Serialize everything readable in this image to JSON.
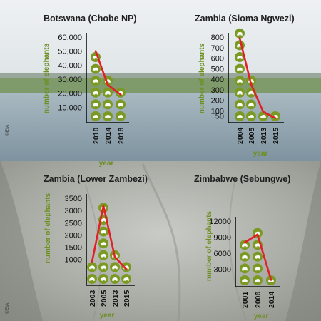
{
  "colors": {
    "marker_fill": "#7b9a24",
    "trend_line": "#e21f26",
    "axis_label": "#6e8f22",
    "axis": "#111111"
  },
  "icon": "elephant-icon",
  "chart_data": [
    {
      "type": "line",
      "title": "Botswana (Chobe NP)",
      "xlabel": "year",
      "ylabel": "number of elephants",
      "categories": [
        "2010",
        "2014",
        "2018"
      ],
      "values": [
        50000,
        26000,
        19000
      ],
      "yticks": [
        "10,000",
        "20,000",
        "30,000",
        "40,000",
        "50,000",
        "60,000"
      ],
      "ylim": [
        0,
        60000
      ],
      "credit": "©EIA"
    },
    {
      "type": "line",
      "title": "Zambia (Sioma Ngwezi)",
      "xlabel": "year",
      "ylabel": "number of elephants",
      "categories": [
        "2004",
        "2005",
        "2013",
        "2015"
      ],
      "values": [
        790,
        350,
        90,
        30
      ],
      "yticks": [
        "50",
        "100",
        "200",
        "300",
        "400",
        "500",
        "600",
        "700",
        "800"
      ],
      "ylim": [
        0,
        800
      ]
    },
    {
      "type": "line",
      "title": "Zambia (Lower Zambezi)",
      "xlabel": "year",
      "ylabel": "number of elephants",
      "categories": [
        "2003",
        "2005",
        "2013",
        "2015"
      ],
      "values": [
        900,
        3200,
        1100,
        600
      ],
      "yticks": [
        "1000",
        "1500",
        "2000",
        "2500",
        "3000",
        "3500"
      ],
      "ylim": [
        0,
        3500
      ],
      "credit": "©EIA"
    },
    {
      "type": "line",
      "title": "Zimbabwe (Sebungwe)",
      "xlabel": "year",
      "ylabel": "number of elephants",
      "categories": [
        "2001",
        "2006",
        "2014"
      ],
      "values": [
        8000,
        9500,
        1000
      ],
      "yticks": [
        "3000",
        "6000",
        "9000",
        "12000"
      ],
      "ylim": [
        0,
        12000
      ]
    }
  ]
}
